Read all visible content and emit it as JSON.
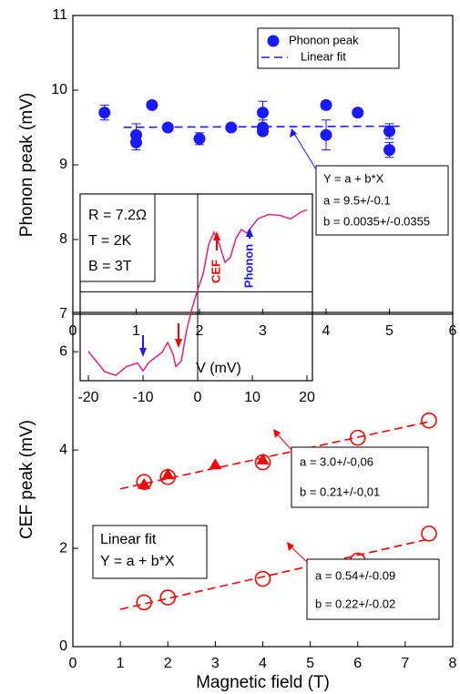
{
  "chart_data": [
    {
      "type": "scatter",
      "ylabel": "Phonon peak (mV)",
      "xlim": [
        0,
        6
      ],
      "ylim": [
        7,
        11
      ],
      "xticks": [
        0,
        1,
        2,
        3,
        4,
        5,
        6
      ],
      "yticks": [
        7,
        8,
        9,
        10,
        11
      ],
      "series": [
        {
          "name": "Phonon peak",
          "color": "#1a1aff",
          "marker": "circle",
          "x": [
            0.5,
            1,
            1,
            1.25,
            1.5,
            2,
            2.5,
            3,
            3,
            3,
            4,
            4,
            4.5,
            5,
            5
          ],
          "values": [
            9.7,
            9.4,
            9.3,
            9.8,
            9.5,
            9.35,
            9.5,
            9.7,
            9.5,
            9.45,
            9.8,
            9.4,
            9.7,
            9.45,
            9.2
          ],
          "errors": [
            0.1,
            0.15,
            0.1,
            null,
            null,
            0.08,
            null,
            0.15,
            0.1,
            0.05,
            0.05,
            0.2,
            0.05,
            0.1,
            0.1
          ]
        },
        {
          "name": "Linear fit",
          "color": "#1a1aff",
          "style": "dashed",
          "x": [
            0.8,
            5.2
          ],
          "values": [
            9.5028,
            9.5182
          ]
        }
      ],
      "annotation": [
        "Y = a + b*X",
        "a = 9.5+/-0.1",
        "b = 0.0035+/-0.0355"
      ]
    },
    {
      "type": "scatter",
      "xlabel": "Magnetic field (T)",
      "ylabel": "CEF peak (mV)",
      "xlim": [
        0,
        8
      ],
      "ylim": [
        0,
        6.8
      ],
      "xticks": [
        0,
        1,
        2,
        3,
        4,
        5,
        6,
        7,
        8
      ],
      "yticks": [
        0,
        2,
        4,
        6
      ],
      "series": [
        {
          "color": "#ff0000",
          "marker": "open-circle",
          "x": [
            1.5,
            2,
            4,
            6,
            7.5
          ],
          "values": [
            3.35,
            3.45,
            3.75,
            4.25,
            4.6
          ]
        },
        {
          "color": "#ff0000",
          "marker": "triangle",
          "x": [
            1.5,
            2,
            3,
            4
          ],
          "values": [
            3.3,
            3.5,
            3.7,
            3.8
          ]
        },
        {
          "color": "#ff0000",
          "marker": "open-circle",
          "x": [
            1.5,
            2,
            4,
            6,
            7.5
          ],
          "values": [
            0.9,
            1.0,
            1.38,
            1.75,
            2.3
          ]
        },
        {
          "color": "#ff0000",
          "style": "dashed",
          "x": [
            1,
            7.5
          ],
          "values": [
            3.21,
            4.575
          ]
        },
        {
          "color": "#ff0000",
          "style": "dashed",
          "x": [
            1,
            7.5
          ],
          "values": [
            0.76,
            2.19
          ]
        }
      ],
      "annotations": [
        [
          "a = 3.0+/-0,06",
          "b = 0.21+/-0,01"
        ],
        [
          "a = 0.54+/-0.09",
          "b = 0.22+/-0.02"
        ],
        [
          "Linear fit",
          "Y = a + b*X"
        ]
      ]
    },
    {
      "type": "line",
      "xlabel": "V (mV)",
      "xlim": [
        -21.5,
        21
      ],
      "ylim": [
        -1,
        1.1
      ],
      "xticks": [
        -20,
        -10,
        0,
        10,
        20
      ],
      "series": [
        {
          "color": "#e0207a",
          "x": [
            -20,
            -17,
            -15,
            -13,
            -11,
            -10,
            -9,
            -8,
            -6.5,
            -5.5,
            -4.5,
            -4,
            -3,
            -2,
            -1,
            0,
            1,
            2,
            3,
            4,
            5,
            6,
            7,
            8,
            9,
            11,
            13,
            15,
            17,
            19,
            20
          ],
          "values": [
            -0.67,
            -0.9,
            -0.94,
            -0.84,
            -0.8,
            -0.89,
            -0.8,
            -0.75,
            -0.68,
            -0.57,
            -0.7,
            -0.84,
            -0.78,
            -0.43,
            -0.18,
            0.02,
            0.2,
            0.53,
            0.67,
            0.53,
            0.33,
            0.39,
            0.6,
            0.7,
            0.66,
            0.82,
            0.87,
            0.86,
            0.82,
            0.9,
            0.92
          ]
        }
      ],
      "annotations": [
        "R = 7.2Ω",
        "T = 2K",
        "B = 3T"
      ],
      "labels": [
        "CEF",
        "Phonon"
      ]
    }
  ]
}
